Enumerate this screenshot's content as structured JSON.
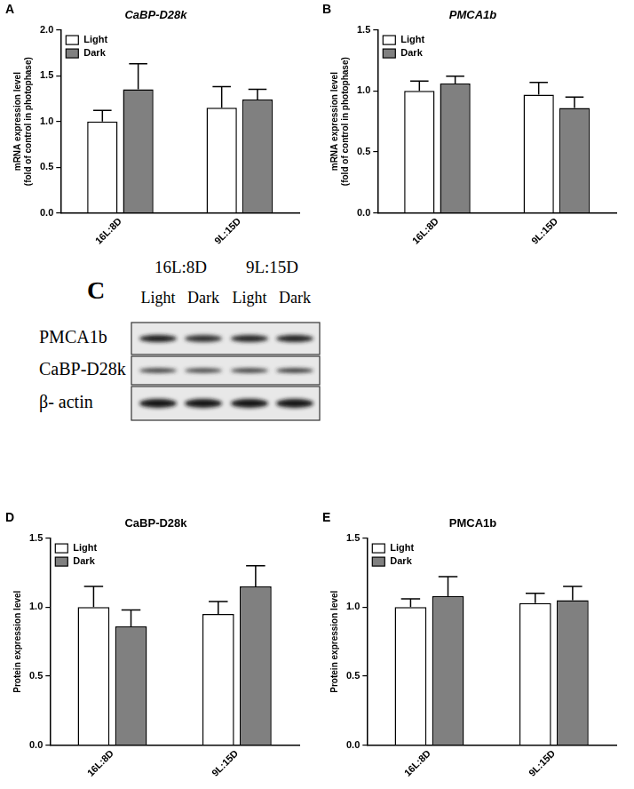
{
  "chart_data": [
    {
      "panel_label": "A",
      "type": "bar",
      "title": "CaBP-D28k",
      "ylabel": [
        "mRNA expression level",
        "(fold of control in photophase)"
      ],
      "categories": [
        "16L:8D",
        "9L:15D"
      ],
      "series": [
        {
          "name": "Light",
          "color": "#ffffff",
          "values": [
            1.0,
            1.15
          ],
          "errors": [
            0.12,
            0.23
          ]
        },
        {
          "name": "Dark",
          "color": "#808080",
          "values": [
            1.35,
            1.24
          ],
          "errors": [
            0.28,
            0.11
          ]
        }
      ],
      "ylim": [
        0,
        2
      ],
      "yticks": [
        {
          "value": 0,
          "label": "0.0"
        },
        {
          "value": 0.5,
          "label": "0.5"
        },
        {
          "value": 1,
          "label": "1.0"
        },
        {
          "value": 1.5,
          "label": "1.5"
        },
        {
          "value": 2,
          "label": "2.0"
        }
      ],
      "grid": false,
      "legend": "upper left"
    },
    {
      "panel_label": "B",
      "type": "bar",
      "title": "PMCA1b",
      "ylabel": [
        "mRNA expression level",
        "(fold of control in photophase)"
      ],
      "categories": [
        "16L:8D",
        "9L:15D"
      ],
      "series": [
        {
          "name": "Light",
          "color": "#ffffff",
          "values": [
            1.0,
            0.97
          ],
          "errors": [
            0.08,
            0.1
          ]
        },
        {
          "name": "Dark",
          "color": "#808080",
          "values": [
            1.06,
            0.86
          ],
          "errors": [
            0.06,
            0.09
          ]
        }
      ],
      "ylim": [
        0,
        1.5
      ],
      "yticks": [
        {
          "value": 0,
          "label": "0.0"
        },
        {
          "value": 0.5,
          "label": "0.5"
        },
        {
          "value": 1,
          "label": "1.0"
        },
        {
          "value": 1.5,
          "label": "1.5"
        }
      ],
      "grid": false,
      "legend": "upper left"
    },
    {
      "panel_label": "D",
      "type": "bar",
      "title": "CaBP-D28k",
      "ylabel": [
        "Protein expression level"
      ],
      "categories": [
        "16L:8D",
        "9L:15D"
      ],
      "series": [
        {
          "name": "Light",
          "color": "#ffffff",
          "values": [
            1.0,
            0.95
          ],
          "errors": [
            0.15,
            0.09
          ]
        },
        {
          "name": "Dark",
          "color": "#808080",
          "values": [
            0.86,
            1.15
          ],
          "errors": [
            0.12,
            0.15
          ]
        }
      ],
      "ylim": [
        0,
        1.5
      ],
      "yticks": [
        {
          "value": 0,
          "label": "0.0"
        },
        {
          "value": 0.5,
          "label": "0.5"
        },
        {
          "value": 1,
          "label": "1.0"
        },
        {
          "value": 1.5,
          "label": "1.5"
        }
      ],
      "grid": false,
      "legend": "upper left"
    },
    {
      "panel_label": "E",
      "type": "bar",
      "title": "PMCA1b",
      "ylabel": [
        "Protein expression level"
      ],
      "categories": [
        "16L:8D",
        "9L:15D"
      ],
      "series": [
        {
          "name": "Light",
          "color": "#ffffff",
          "values": [
            1.0,
            1.03
          ],
          "errors": [
            0.06,
            0.07
          ]
        },
        {
          "name": "Dark",
          "color": "#808080",
          "values": [
            1.08,
            1.05
          ],
          "errors": [
            0.14,
            0.1
          ]
        }
      ],
      "ylim": [
        0,
        1.5
      ],
      "yticks": [
        {
          "value": 0,
          "label": "0.0"
        },
        {
          "value": 0.5,
          "label": "0.5"
        },
        {
          "value": 1,
          "label": "1.0"
        },
        {
          "value": 1.5,
          "label": "1.5"
        }
      ],
      "grid": false,
      "legend": "upper left"
    }
  ],
  "western_blot": {
    "panel_label": "C",
    "conditions": [
      "16L:8D",
      "9L:15D"
    ],
    "lanes": [
      "Light",
      "Dark",
      "Light",
      "Dark"
    ],
    "rows": [
      "PMCA1b",
      "CaBP-D28k",
      "β- actin"
    ]
  }
}
